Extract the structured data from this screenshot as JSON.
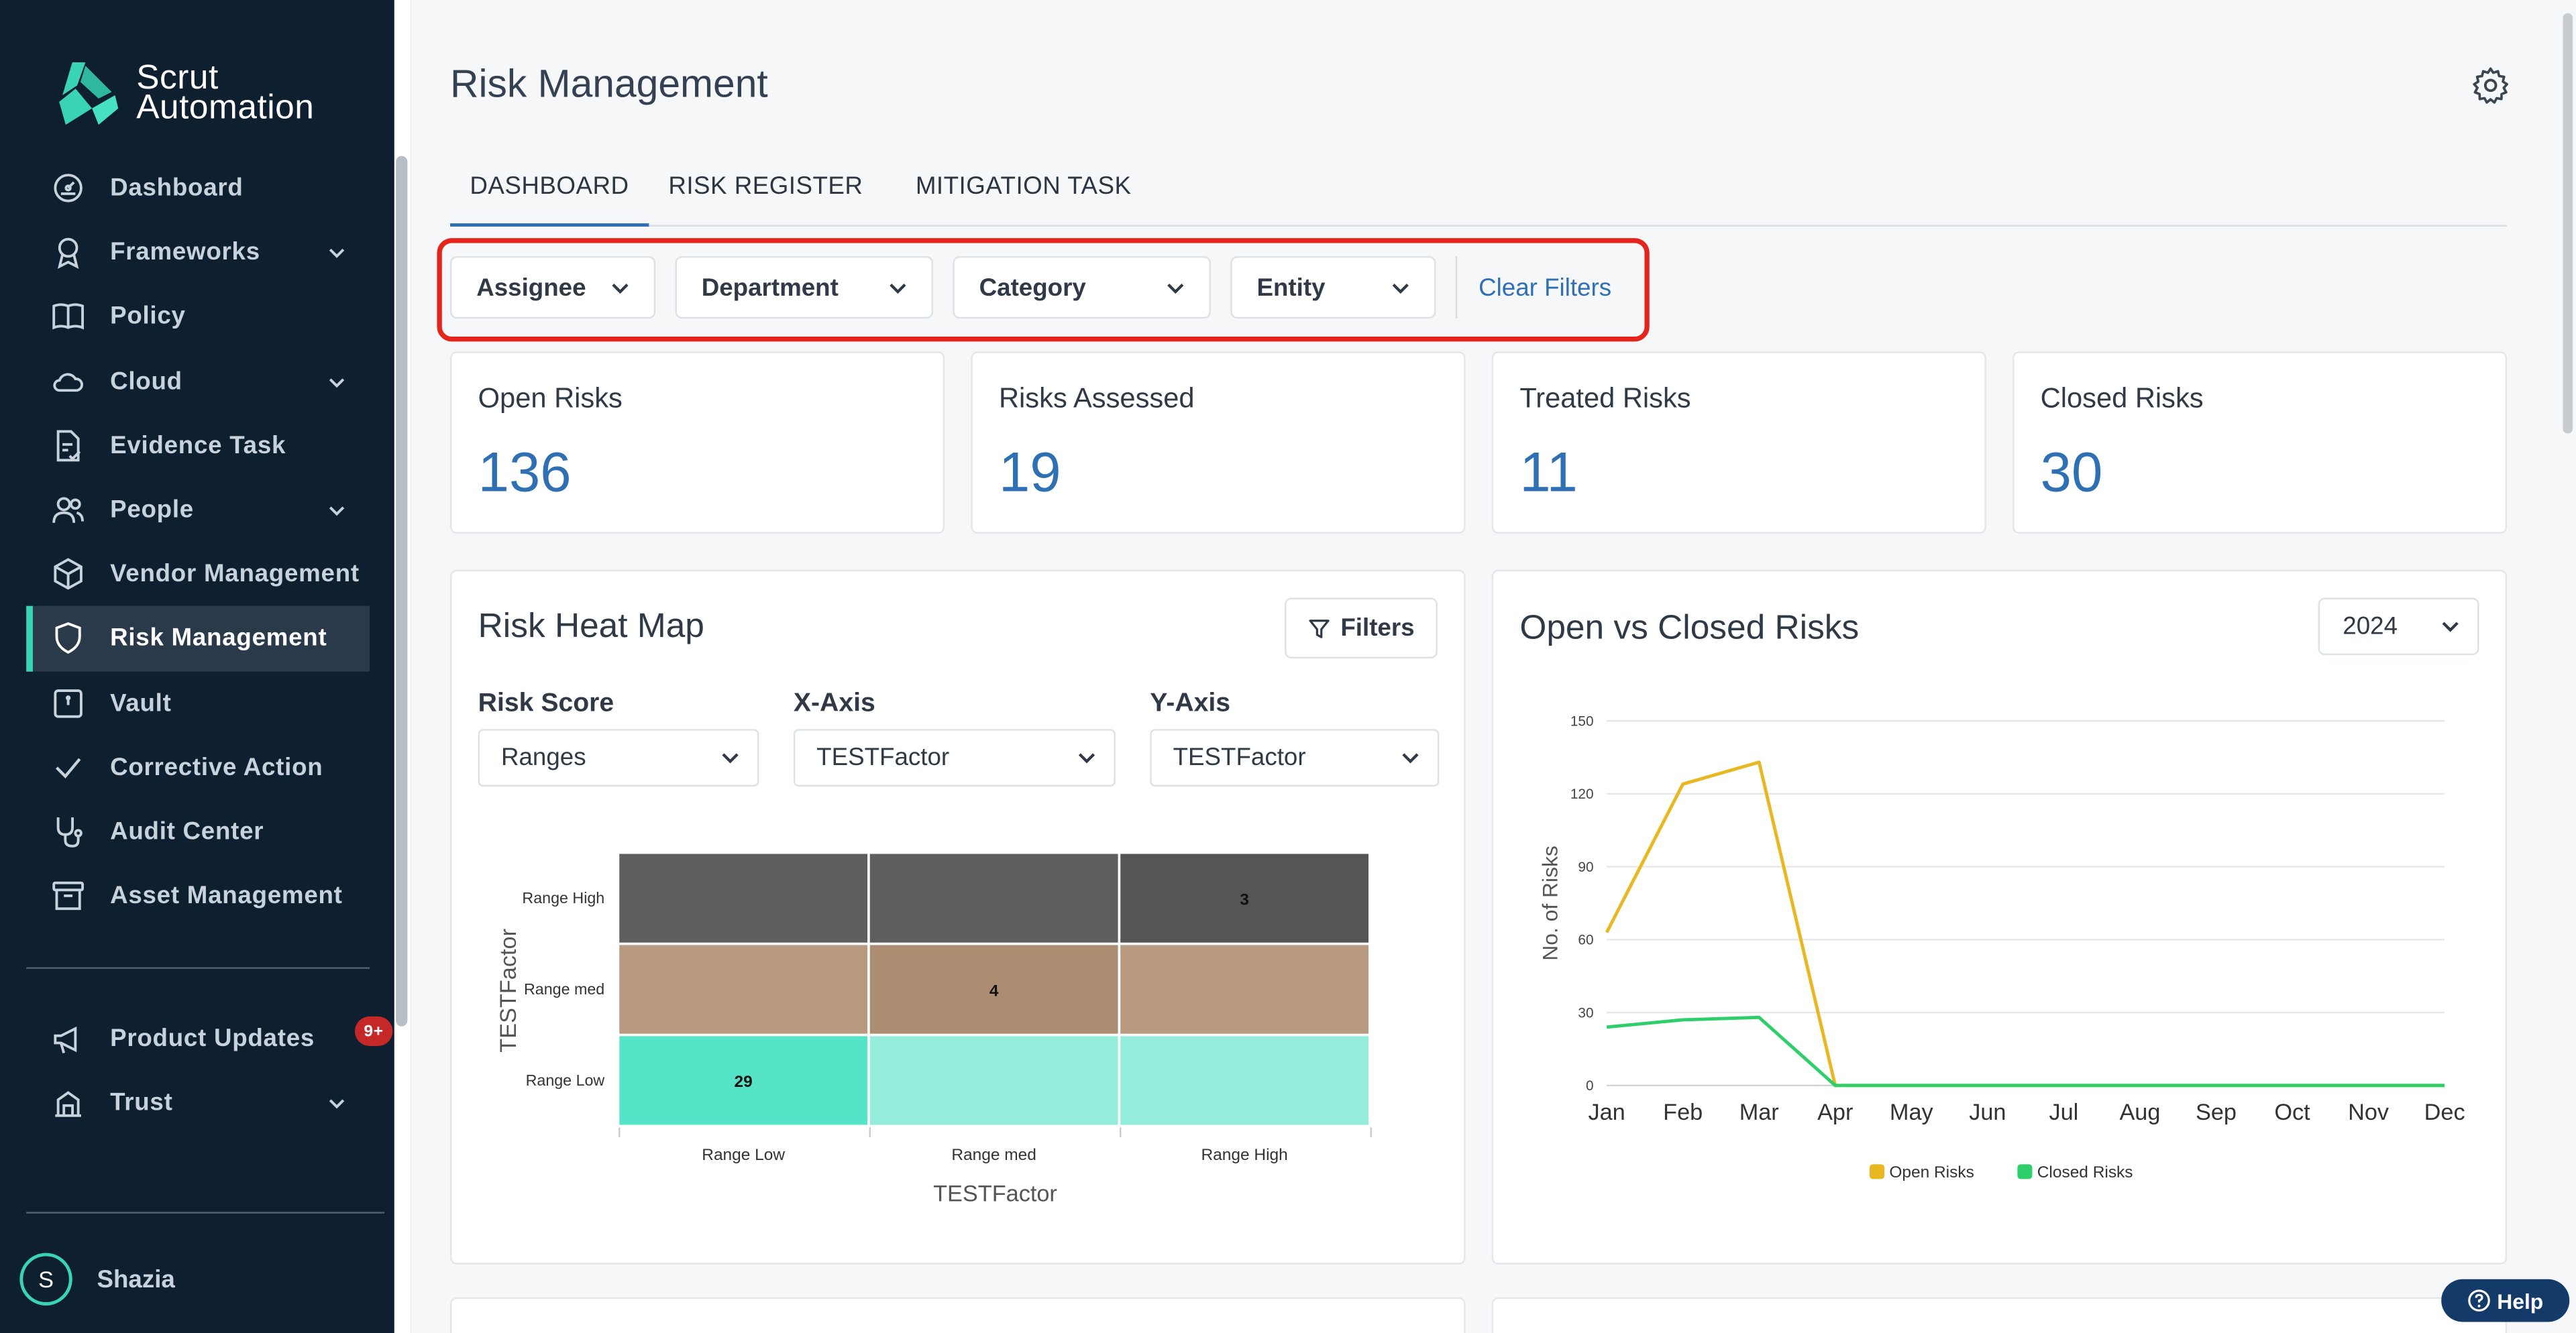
{
  "brand": {
    "line1": "Scrut",
    "line2": "Automation",
    "accent": "#39d3b5"
  },
  "sidebar": {
    "items": [
      {
        "label": "Dashboard",
        "icon": "dashboard-icon",
        "expandable": false
      },
      {
        "label": "Frameworks",
        "icon": "award-icon",
        "expandable": true
      },
      {
        "label": "Policy",
        "icon": "book-icon",
        "expandable": false
      },
      {
        "label": "Cloud",
        "icon": "cloud-icon",
        "expandable": true
      },
      {
        "label": "Evidence Task",
        "icon": "document-check-icon",
        "expandable": false
      },
      {
        "label": "People",
        "icon": "people-icon",
        "expandable": true
      },
      {
        "label": "Vendor Management",
        "icon": "box-icon",
        "expandable": false
      },
      {
        "label": "Risk Management",
        "icon": "shield-icon",
        "expandable": false,
        "active": true
      },
      {
        "label": "Vault",
        "icon": "vault-icon",
        "expandable": false
      },
      {
        "label": "Corrective Action",
        "icon": "check-icon",
        "expandable": false
      },
      {
        "label": "Audit Center",
        "icon": "stethoscope-icon",
        "expandable": false
      },
      {
        "label": "Asset Management",
        "icon": "archive-icon",
        "expandable": false
      }
    ],
    "bottom_items": [
      {
        "label": "Product Updates",
        "icon": "megaphone-icon",
        "badge": "9+"
      },
      {
        "label": "Trust",
        "icon": "trust-icon",
        "expandable": true
      }
    ],
    "user": {
      "initial": "S",
      "name": "Shazia"
    }
  },
  "header": {
    "title": "Risk Management"
  },
  "tabs": [
    {
      "label": "DASHBOARD",
      "active": true
    },
    {
      "label": "RISK REGISTER"
    },
    {
      "label": "MITIGATION TASK"
    }
  ],
  "filters": {
    "assignee": "Assignee",
    "department": "Department",
    "category": "Category",
    "entity": "Entity",
    "clear": "Clear Filters"
  },
  "stats": [
    {
      "label": "Open Risks",
      "value": "136"
    },
    {
      "label": "Risks Assessed",
      "value": "19"
    },
    {
      "label": "Treated Risks",
      "value": "11"
    },
    {
      "label": "Closed Risks",
      "value": "30"
    }
  ],
  "heatmap": {
    "title": "Risk Heat Map",
    "filters_button": "Filters",
    "risk_score_label": "Risk Score",
    "risk_score_value": "Ranges",
    "x_axis_label": "X-Axis",
    "x_axis_value": "TESTFactor",
    "y_axis_label": "Y-Axis",
    "y_axis_value": "TESTFactor"
  },
  "line_chart": {
    "title": "Open vs Closed Risks",
    "year": "2024"
  },
  "chart_data": [
    {
      "type": "heatmap",
      "xlabel": "TESTFactor",
      "ylabel": "TESTFactor",
      "x_categories": [
        "Range Low",
        "Range med",
        "Range High"
      ],
      "y_categories": [
        "Range High",
        "Range med",
        "Range Low"
      ],
      "values": [
        [
          null,
          null,
          3
        ],
        [
          null,
          4,
          null
        ],
        [
          29,
          null,
          null
        ]
      ],
      "row_colors": [
        "#5e5e5e",
        "#b79a80",
        "#94ecdb"
      ],
      "highlight_colors": {
        "Range High": "#555555",
        "Range med": "#ad8d71",
        "Range Low": "#56e4c8"
      }
    },
    {
      "type": "line",
      "title": "Open vs Closed Risks",
      "ylabel": "No. of Risks",
      "categories": [
        "Jan",
        "Feb",
        "Mar",
        "Apr",
        "May",
        "Jun",
        "Jul",
        "Aug",
        "Sep",
        "Oct",
        "Nov",
        "Dec"
      ],
      "yticks": [
        0,
        30,
        60,
        90,
        120,
        150
      ],
      "ylim": [
        0,
        150
      ],
      "series": [
        {
          "name": "Open Risks",
          "color": "#e8b722",
          "values": [
            63,
            124,
            133,
            0,
            0,
            0,
            0,
            0,
            0,
            0,
            0,
            0
          ]
        },
        {
          "name": "Closed Risks",
          "color": "#2ecf6b",
          "values": [
            24,
            27,
            28,
            0,
            0,
            0,
            0,
            0,
            0,
            0,
            0,
            0
          ]
        }
      ],
      "legend": "bottom"
    }
  ],
  "help": {
    "label": "Help"
  }
}
